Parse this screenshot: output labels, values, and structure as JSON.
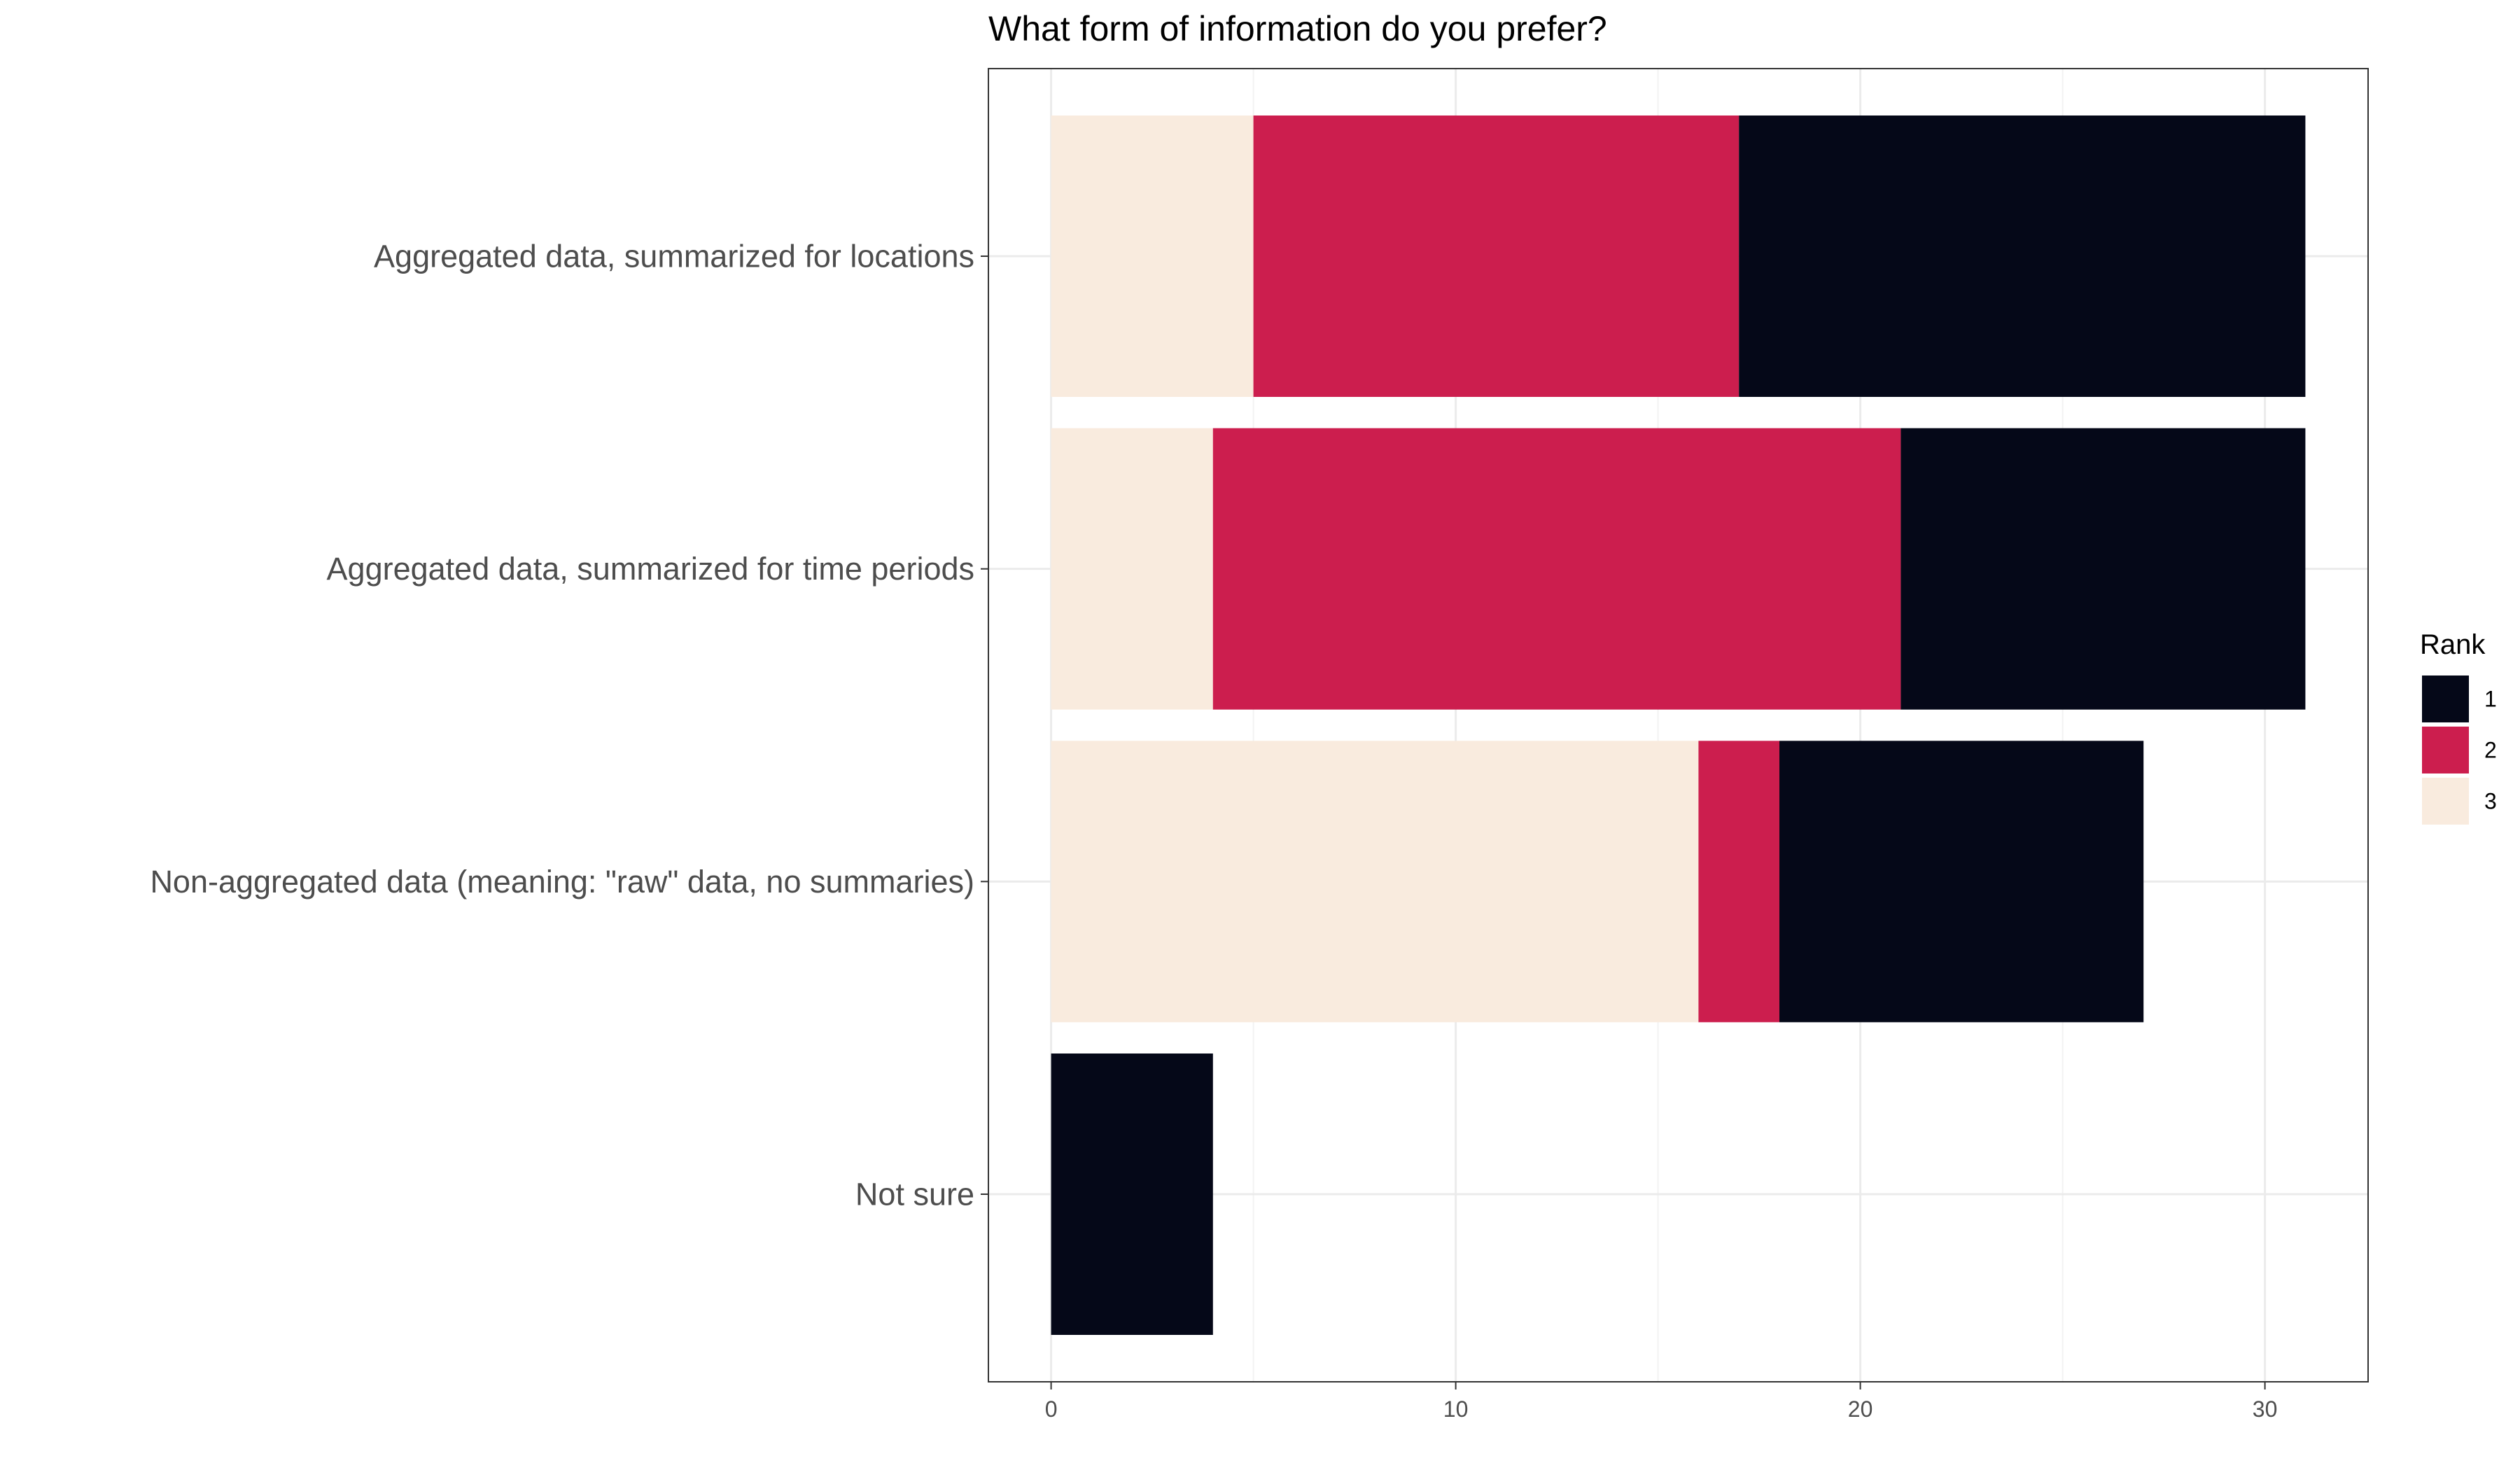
{
  "chart_data": {
    "type": "bar",
    "orientation": "horizontal",
    "stacked": true,
    "title": "What form of information do you prefer?",
    "xlabel": "",
    "ylabel": "",
    "categories": [
      "Aggregated data, summarized for locations",
      "Aggregated data, summarized for time periods",
      "Non-aggregated data (meaning: \"raw\" data, no summaries)",
      "Not sure"
    ],
    "stack_order": [
      "3",
      "2",
      "1"
    ],
    "series": [
      {
        "name": "1",
        "color": "#050818",
        "values": [
          14,
          10,
          9,
          4
        ]
      },
      {
        "name": "2",
        "color": "#cc1e4e",
        "values": [
          12,
          17,
          2,
          0
        ]
      },
      {
        "name": "3",
        "color": "#f9ebde",
        "values": [
          5,
          4,
          16,
          0
        ]
      }
    ],
    "xlim": [
      -1.55,
      32.55
    ],
    "xticks": [
      0,
      10,
      20,
      30
    ],
    "grid": true,
    "legend": {
      "title": "Rank",
      "placement": "right",
      "items": [
        "1",
        "2",
        "3"
      ]
    }
  }
}
